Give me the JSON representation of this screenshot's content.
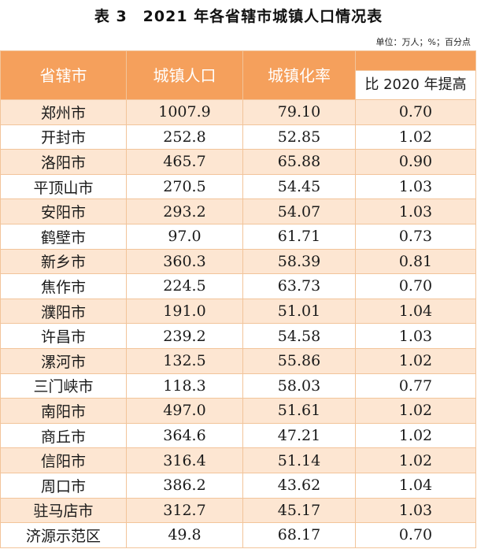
{
  "title": "表 3　2021 年各省辖市城镇人口情况表",
  "unit_note": "单位：万人；%；百分点",
  "headers": [
    "省辖市",
    "城镇人口",
    "城镇化率",
    "比 2020 年提高"
  ],
  "header_color": "#f5a05c",
  "stripe_color": "#fde6d2",
  "rows": [
    {
      "city": "郑州市",
      "pop": "1007.9",
      "rate": "79.10",
      "change": "0.70"
    },
    {
      "city": "开封市",
      "pop": "252.8",
      "rate": "52.85",
      "change": "1.02"
    },
    {
      "city": "洛阳市",
      "pop": "465.7",
      "rate": "65.88",
      "change": "0.90"
    },
    {
      "city": "平顶山市",
      "pop": "270.5",
      "rate": "54.45",
      "change": "1.03"
    },
    {
      "city": "安阳市",
      "pop": "293.2",
      "rate": "54.07",
      "change": "1.03"
    },
    {
      "city": "鹤壁市",
      "pop": "97.0",
      "rate": "61.71",
      "change": "0.73"
    },
    {
      "city": "新乡市",
      "pop": "360.3",
      "rate": "58.39",
      "change": "0.81"
    },
    {
      "city": "焦作市",
      "pop": "224.5",
      "rate": "63.73",
      "change": "0.70"
    },
    {
      "city": "濮阳市",
      "pop": "191.0",
      "rate": "51.01",
      "change": "1.04"
    },
    {
      "city": "许昌市",
      "pop": "239.2",
      "rate": "54.58",
      "change": "1.03"
    },
    {
      "city": "漯河市",
      "pop": "132.5",
      "rate": "55.86",
      "change": "1.02"
    },
    {
      "city": "三门峡市",
      "pop": "118.3",
      "rate": "58.03",
      "change": "0.77"
    },
    {
      "city": "南阳市",
      "pop": "497.0",
      "rate": "51.61",
      "change": "1.02"
    },
    {
      "city": "商丘市",
      "pop": "364.6",
      "rate": "47.21",
      "change": "1.02"
    },
    {
      "city": "信阳市",
      "pop": "316.4",
      "rate": "51.14",
      "change": "1.02"
    },
    {
      "city": "周口市",
      "pop": "386.2",
      "rate": "43.62",
      "change": "1.04"
    },
    {
      "city": "驻马店市",
      "pop": "312.7",
      "rate": "45.17",
      "change": "1.03"
    },
    {
      "city": "济源示范区",
      "pop": "49.8",
      "rate": "68.17",
      "change": "0.70"
    }
  ]
}
